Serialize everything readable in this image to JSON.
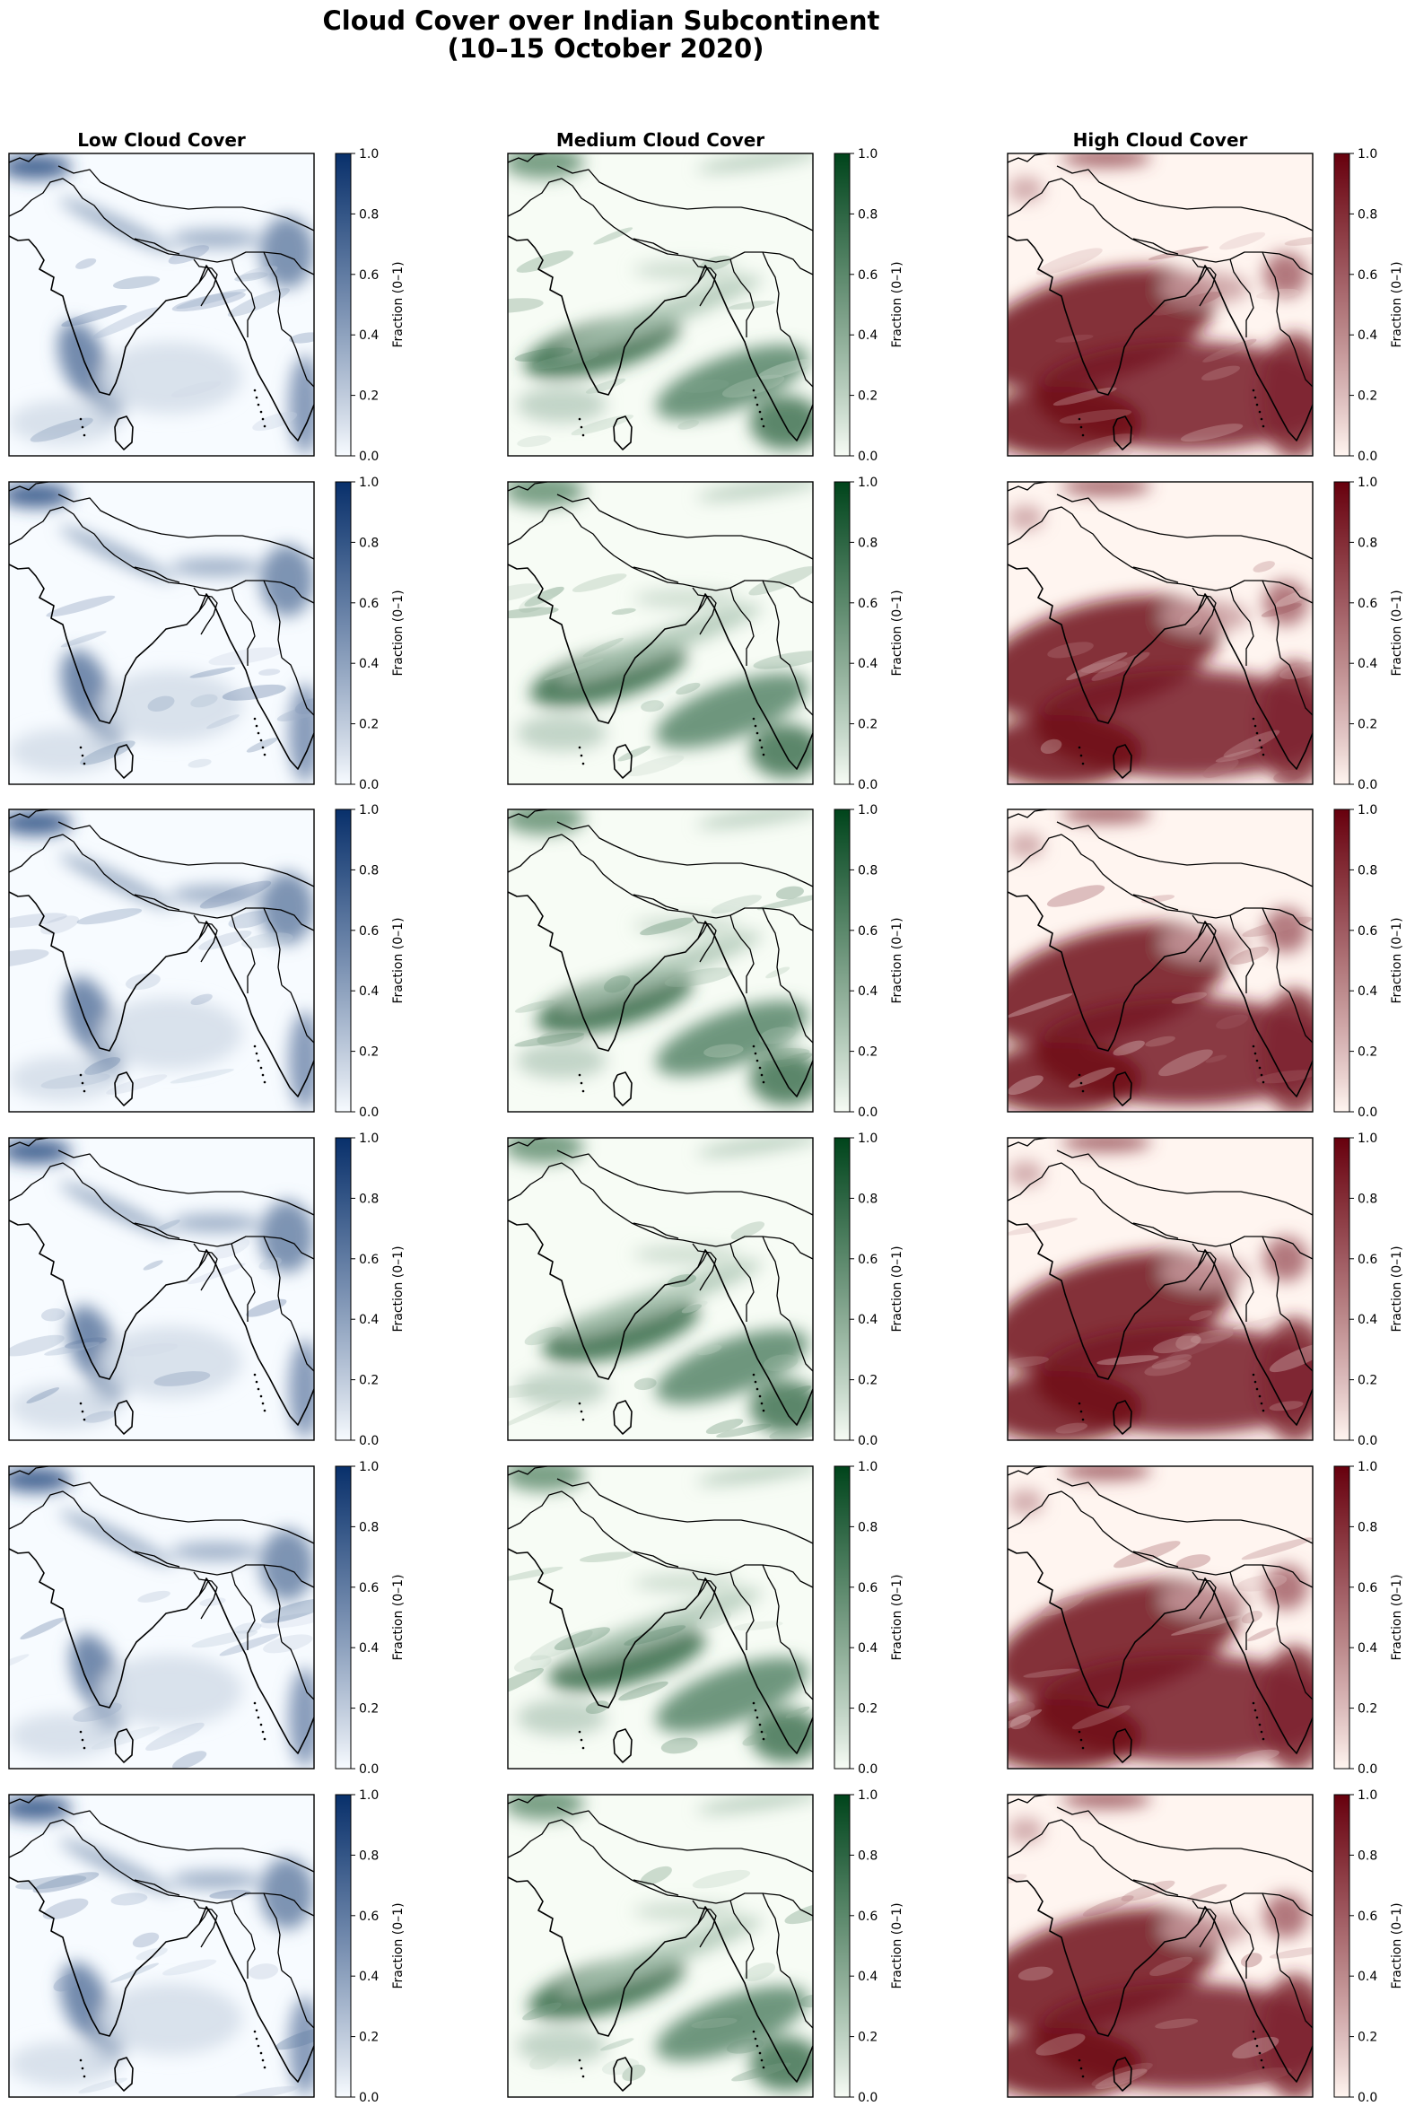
{
  "title": "Cloud Cover over Indian Subcontinent\n(10–15 October 2020)",
  "title_lines": [
    "Cloud Cover over Indian Subcontinent",
    "(10–15 October 2020)"
  ],
  "chart_data": {
    "type": "heatmap",
    "title": "Cloud Cover over Indian Subcontinent (10–15 October 2020)",
    "layout": {
      "rows": 6,
      "columns": 3
    },
    "columns": [
      {
        "key": "low",
        "title": "Low Cloud Cover",
        "colormap": "Blues",
        "color_low": "#f7fbff",
        "color_high": "#08306b"
      },
      {
        "key": "medium",
        "title": "Medium Cloud Cover",
        "colormap": "Greens",
        "color_low": "#f7fcf5",
        "color_high": "#00441b"
      },
      {
        "key": "high",
        "title": "High Cloud Cover",
        "colormap": "Reds",
        "color_low": "#fff5f0",
        "color_high": "#67000d"
      }
    ],
    "colorbar": {
      "label": "Fraction (0–1)",
      "range": [
        0,
        1
      ],
      "ticks": [
        "0.0",
        "0.2",
        "0.4",
        "0.6",
        "0.8",
        "1.0"
      ]
    },
    "map_overlay": [
      "coastlines",
      "country borders"
    ]
  }
}
